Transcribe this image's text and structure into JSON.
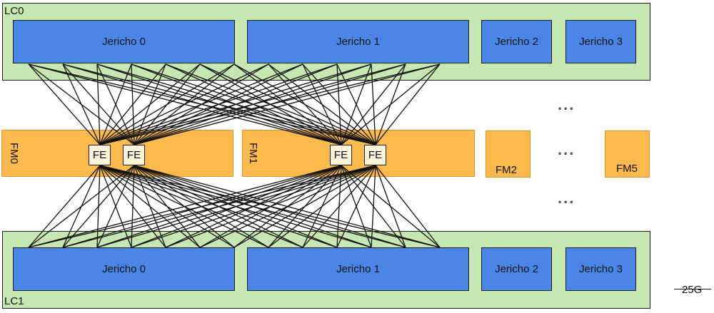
{
  "lc0": {
    "label": "LC0",
    "jerichos": [
      "Jericho 0",
      "Jericho 1",
      "Jericho 2",
      "Jericho 3"
    ]
  },
  "lc1": {
    "label": "LC1",
    "jerichos": [
      "Jericho 0",
      "Jericho 1",
      "Jericho 2",
      "Jericho 3"
    ]
  },
  "fabric_modules": [
    "FM0",
    "FM1",
    "FM2",
    "FM5"
  ],
  "fe_label": "FE",
  "ellipsis": "...",
  "legend": {
    "label": "25G"
  },
  "colors": {
    "line_card": "#c6e7b2",
    "jericho": "#4a86e8",
    "fabric_module": "#fbb94e",
    "fe": "#fbf2d9",
    "link": "#111111"
  }
}
